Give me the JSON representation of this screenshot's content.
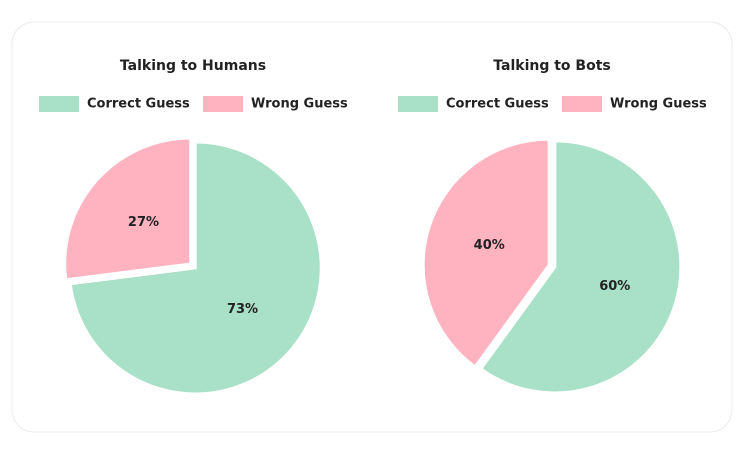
{
  "chart_data": [
    {
      "type": "pie",
      "title": "Talking to Humans",
      "categories": [
        "Correct Guess",
        "Wrong Guess"
      ],
      "values": [
        73,
        27
      ],
      "value_labels": [
        "73%",
        "27%"
      ],
      "colors": [
        "#a8e0c8",
        "#ffb3c1"
      ]
    },
    {
      "type": "pie",
      "title": "Talking to Bots",
      "categories": [
        "Correct Guess",
        "Wrong Guess"
      ],
      "values": [
        60,
        40
      ],
      "value_labels": [
        "60%",
        "40%"
      ],
      "colors": [
        "#a8e0c8",
        "#ffb3c1"
      ]
    }
  ]
}
